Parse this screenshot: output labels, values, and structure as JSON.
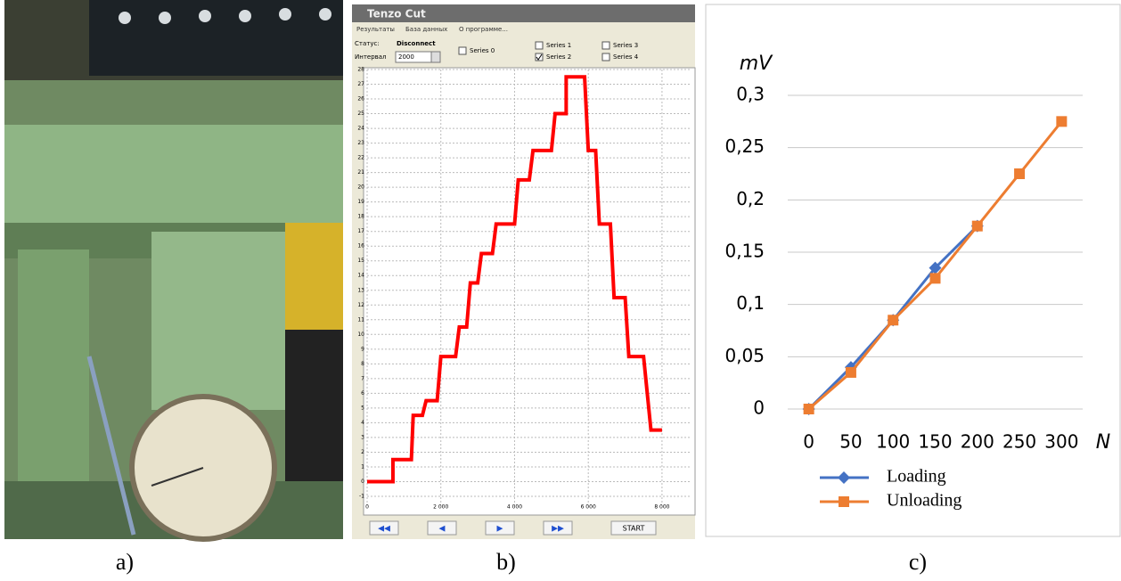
{
  "captions": [
    "a)",
    "b)",
    "c)"
  ],
  "software": {
    "title": "Tenzo Cut",
    "menu": [
      "Результаты",
      "База данных",
      "О программе..."
    ],
    "status_label": "Статус:",
    "status_value": "Disconnect",
    "interval_label": "Интервал",
    "interval_value": "2000",
    "series": [
      {
        "name": "Series 0",
        "checked": false
      },
      {
        "name": "Series 1",
        "checked": false
      },
      {
        "name": "Series 2",
        "checked": true
      },
      {
        "name": "Series 3",
        "checked": false
      },
      {
        "name": "Series 4",
        "checked": false
      }
    ],
    "start_button": "START"
  },
  "chart_data": [
    {
      "type": "line",
      "color": "#ff0000",
      "grid": true,
      "x": [
        0,
        700,
        700,
        1200,
        1250,
        1500,
        1600,
        1900,
        2000,
        2400,
        2500,
        2700,
        2800,
        3000,
        3100,
        3400,
        3500,
        4000,
        4100,
        4400,
        4500,
        5000,
        5100,
        5400,
        5400,
        5900,
        6000,
        6200,
        6300,
        6600,
        6700,
        7000,
        7100,
        7500,
        7700,
        8000
      ],
      "values": [
        0,
        0,
        1.5,
        1.5,
        4.5,
        4.5,
        5.5,
        5.5,
        8.5,
        8.5,
        10.5,
        10.5,
        13.5,
        13.5,
        15.5,
        15.5,
        17.5,
        17.5,
        20.5,
        20.5,
        22.5,
        22.5,
        25,
        25,
        27.5,
        27.5,
        22.5,
        22.5,
        17.5,
        17.5,
        12.5,
        12.5,
        8.5,
        8.5,
        3.5,
        3.5
      ],
      "xlim": [
        0,
        8800
      ],
      "ylim": [
        -1,
        28
      ],
      "xticks": [
        0,
        {
          "value": 2000,
          "label": "2 000"
        },
        {
          "value": 4000,
          "label": "4 000"
        },
        {
          "value": 6000,
          "label": "6 000"
        },
        {
          "value": 8000,
          "label": "8 000"
        }
      ],
      "yticks": [
        -1,
        0,
        1,
        2,
        3,
        4,
        5,
        6,
        7,
        8,
        9,
        10,
        11,
        12,
        13,
        14,
        15,
        16,
        17,
        18,
        19,
        20,
        21,
        22,
        23,
        24,
        25,
        26,
        27,
        28
      ]
    },
    {
      "type": "line",
      "y_label": "mV",
      "x_label": "N",
      "categories": [
        "0",
        "50",
        "100",
        "150",
        "200",
        "250",
        "300"
      ],
      "series": [
        {
          "name": "Loading",
          "color": "#4472c4",
          "marker": "diamond",
          "values": [
            0,
            0.04,
            0.085,
            0.135,
            0.175,
            null,
            null
          ]
        },
        {
          "name": "Unloading",
          "color": "#ed7d31",
          "marker": "square",
          "values": [
            0,
            0.035,
            0.085,
            0.125,
            0.175,
            0.225,
            0.275
          ]
        }
      ],
      "ylim": [
        0,
        0.3
      ],
      "yticks": [
        0,
        {
          "value": 0.05,
          "label": "0,05"
        },
        {
          "value": 0.1,
          "label": "0,1"
        },
        {
          "value": 0.15,
          "label": "0,15"
        },
        {
          "value": 0.2,
          "label": "0,2"
        },
        {
          "value": 0.25,
          "label": "0,25"
        },
        {
          "value": 0.3,
          "label": "0,3"
        }
      ],
      "grid": true
    }
  ]
}
